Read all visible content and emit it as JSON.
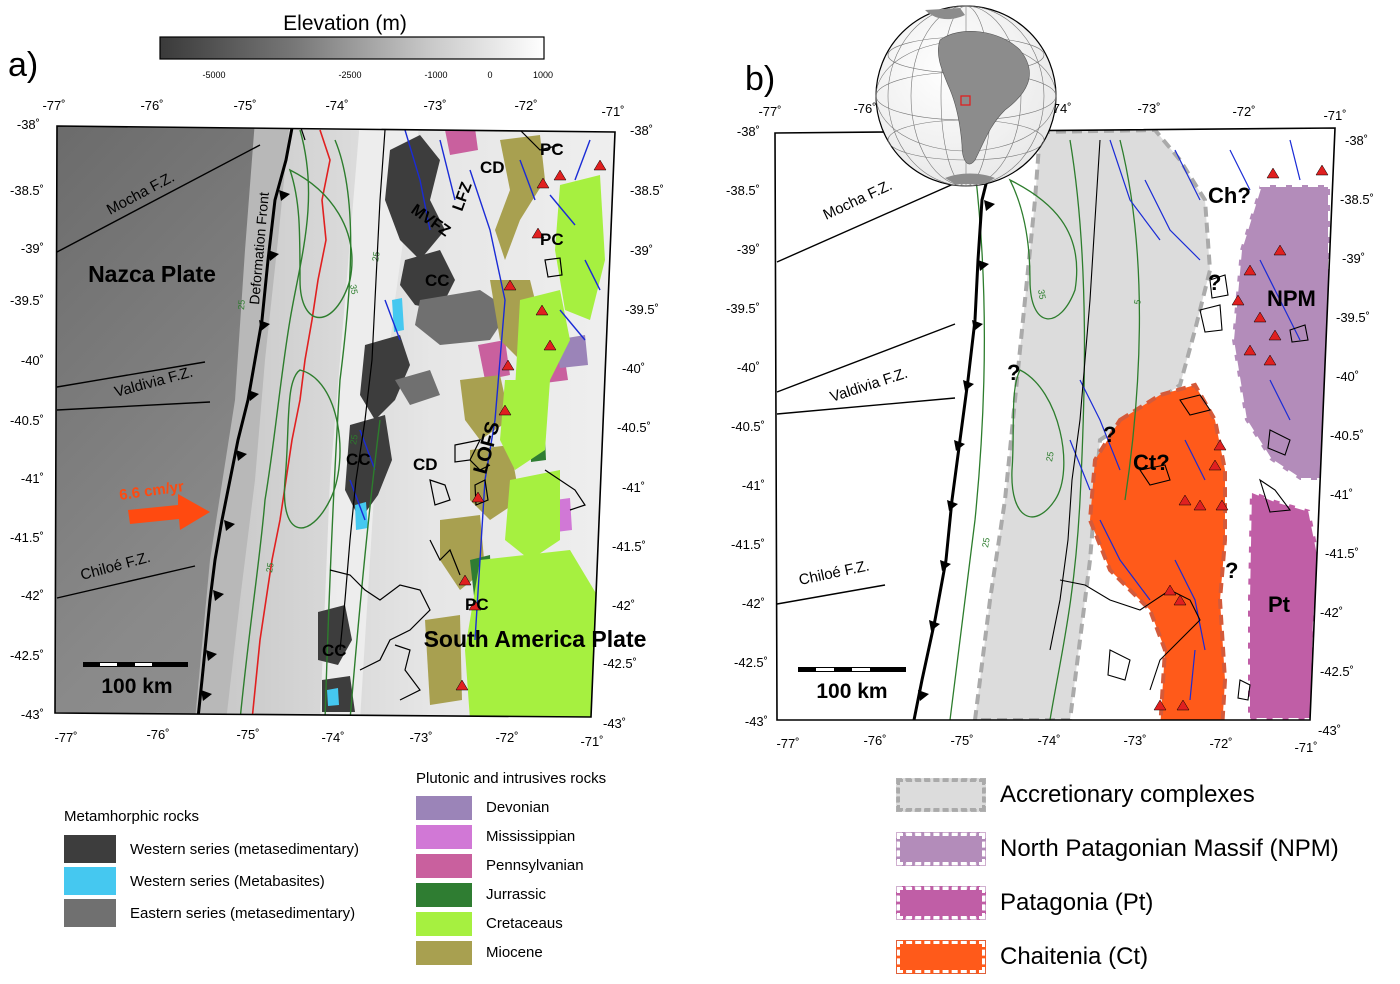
{
  "elevation_bar": {
    "title": "Elevation (m)",
    "ticks": [
      "-5000",
      "-2500",
      "-1000",
      "0",
      "1000"
    ]
  },
  "panel_a": {
    "label": "a)",
    "lon_ticks": [
      "-77˚",
      "-76˚",
      "-75˚",
      "-74˚",
      "-73˚",
      "-72˚",
      "-71˚"
    ],
    "lat_ticks": [
      "-38˚",
      "-38.5˚",
      "-39˚",
      "-39.5˚",
      "-40˚",
      "-40.5˚",
      "-41˚",
      "-41.5˚",
      "-42˚",
      "-42.5˚",
      "-43˚"
    ],
    "fracture_zones": [
      "Mocha F.Z.",
      "Valdivia F.Z.",
      "Chiloé F.Z."
    ],
    "plates": [
      "Nazca Plate",
      "South America Plate"
    ],
    "deformation_front": "Deformation Front",
    "velocity": "6.6 cm/yr",
    "scale_bar": "100 km",
    "faults": [
      "LFZ",
      "MVFZ",
      "LOFS"
    ],
    "units": {
      "cc": "CC",
      "cd": "CD",
      "pc": "PC"
    },
    "contours": [
      "25",
      "35",
      "25",
      "25",
      "25"
    ]
  },
  "panel_b": {
    "label": "b)",
    "lon_ticks": [
      "-77˚",
      "-76˚",
      "-75˚",
      "-74˚",
      "-73˚",
      "-72˚",
      "-71˚"
    ],
    "lat_ticks": [
      "-38˚",
      "-38.5˚",
      "-39˚",
      "-39.5˚",
      "-40˚",
      "-40.5˚",
      "-41˚",
      "-41.5˚",
      "-42˚",
      "-42.5˚",
      "-43˚"
    ],
    "fracture_zones": [
      "Mocha F.Z.",
      "Valdivia F.Z.",
      "Chiloé F.Z."
    ],
    "terranes": {
      "ch": "Ch?",
      "npm": "NPM",
      "ct": "Ct?",
      "pt": "Pt"
    },
    "question": "?",
    "scale_bar": "100 km",
    "contours": [
      "35",
      "25",
      "25",
      "5"
    ]
  },
  "legend_metamorphic": {
    "title": "Metamhorphic rocks",
    "items": [
      {
        "label": "Western series (metasedimentary)",
        "color": "#3d3d3d"
      },
      {
        "label": "Western series (Metabasites)",
        "color": "#45c8f0"
      },
      {
        "label": "Eastern series (metasedimentary)",
        "color": "#707070"
      }
    ]
  },
  "legend_plutonic": {
    "title": "Plutonic and intrusives rocks",
    "items": [
      {
        "label": "Devonian",
        "color": "#9b84b8"
      },
      {
        "label": "Mississippian",
        "color": "#d178d6"
      },
      {
        "label": "Pennsylvanian",
        "color": "#c9609e"
      },
      {
        "label": "Jurrassic",
        "color": "#2f7d32"
      },
      {
        "label": "Cretaceaus",
        "color": "#a6f040"
      },
      {
        "label": "Miocene",
        "color": "#a8a050"
      }
    ]
  },
  "legend_terranes": {
    "items": [
      {
        "label": "Accretionary complexes",
        "color": "#dcdcdc"
      },
      {
        "label": "North Patagonian Massif (NPM)",
        "color": "#b38cba"
      },
      {
        "label": "Patagonia (Pt)",
        "color": "#c05ea6"
      },
      {
        "label": "Chaitenia (Ct)",
        "color": "#ff5a1a"
      }
    ]
  }
}
